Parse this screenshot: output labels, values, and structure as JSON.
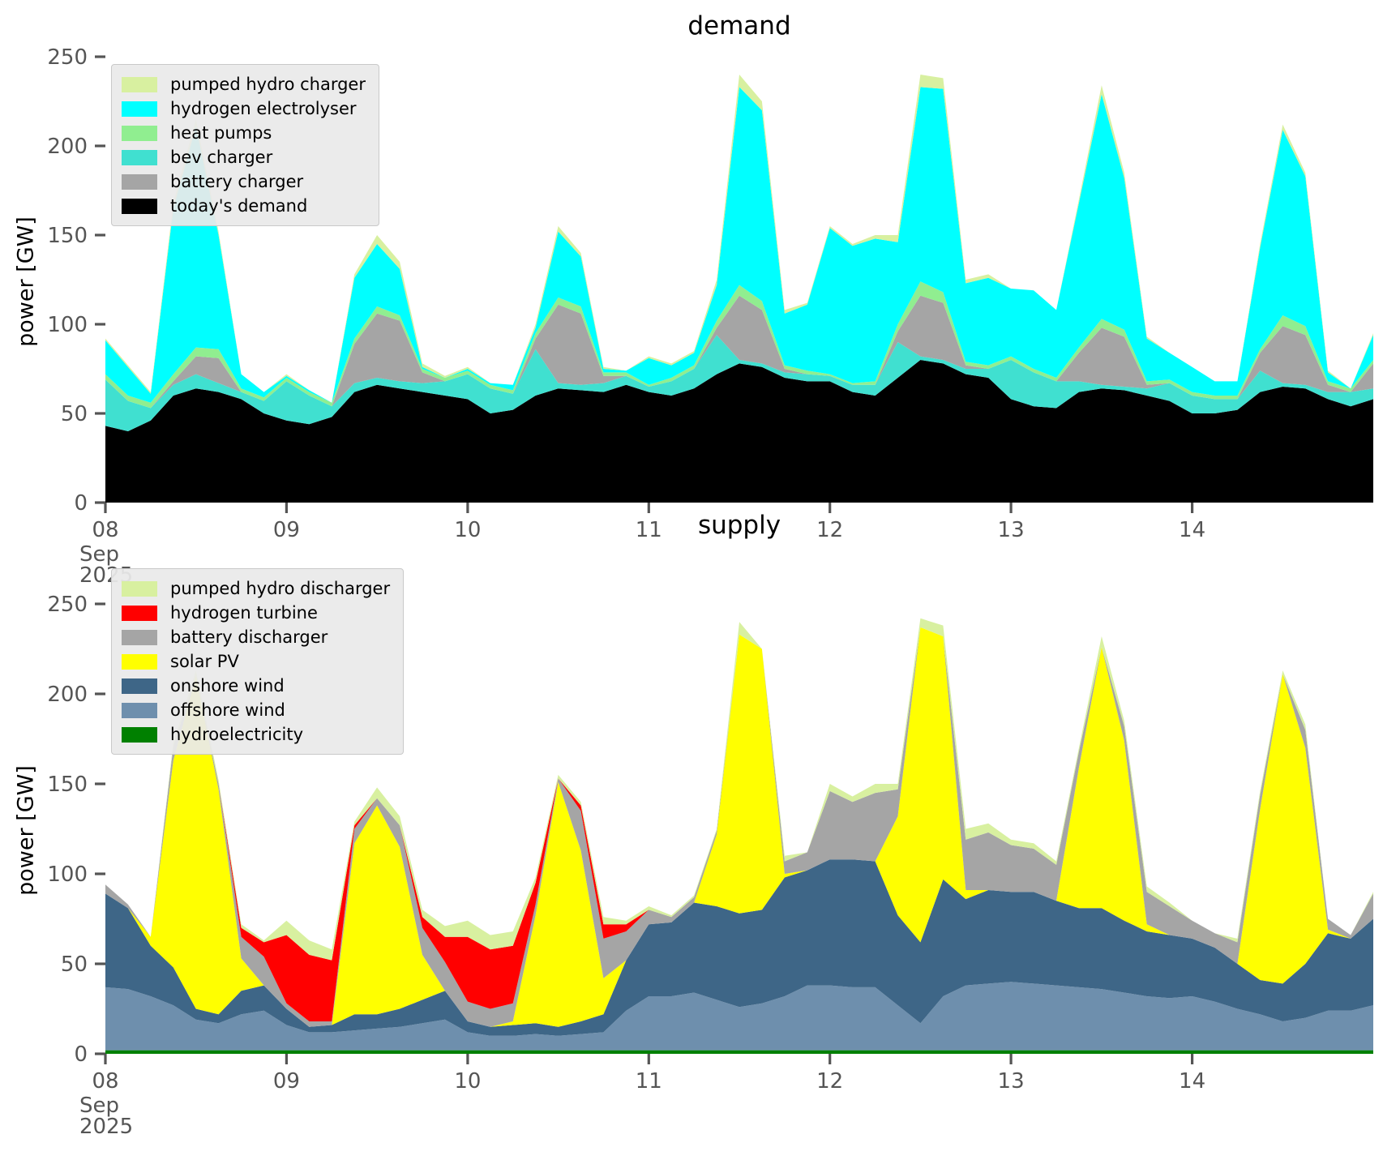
{
  "figure": {
    "background": "#ffffff",
    "tick_color": "#555555",
    "tick_label_color": "#555555",
    "title_color": "#000000"
  },
  "chart_data": [
    {
      "key": "demand",
      "type": "area",
      "title": "demand",
      "ylabel": "power [GW]",
      "ylim": [
        0,
        250
      ],
      "y_ticks": [
        "0",
        "50",
        "100",
        "150",
        "200",
        "250"
      ],
      "x_ticks": [
        {
          "label": "08",
          "sub": [
            "Sep",
            "2025"
          ]
        },
        {
          "label": "09"
        },
        {
          "label": "10"
        },
        {
          "label": "11"
        },
        {
          "label": "12"
        },
        {
          "label": "13"
        },
        {
          "label": "14"
        }
      ],
      "x_start": "2025-09-08 00:00",
      "hours_span": 168,
      "step_hours": 3,
      "grid": false,
      "legend_position": "upper left",
      "legend": [
        {
          "label": "pumped hydro charger",
          "color": "#d8f0a0"
        },
        {
          "label": "hydrogen electrolyser",
          "color": "#00ffff"
        },
        {
          "label": "heat pumps",
          "color": "#90ee90"
        },
        {
          "label": "bev charger",
          "color": "#40e0d0"
        },
        {
          "label": "battery charger",
          "color": "#a5a5a5"
        },
        {
          "label": "today's demand",
          "color": "#000000"
        }
      ],
      "series": [
        {
          "name": "today's demand",
          "color": "#000000",
          "values": [
            43,
            40,
            46,
            60,
            64,
            62,
            58,
            50,
            46,
            44,
            48,
            62,
            66,
            64,
            62,
            60,
            58,
            50,
            52,
            60,
            64,
            63,
            62,
            66,
            62,
            60,
            64,
            72,
            78,
            76,
            70,
            68,
            68,
            62,
            60,
            70,
            80,
            78,
            72,
            70,
            58,
            54,
            53,
            62,
            64,
            63,
            60,
            57,
            50,
            50,
            52,
            62,
            65,
            64,
            58,
            54,
            58
          ]
        },
        {
          "name": "bev charger",
          "color": "#40e0d0",
          "values": [
            26,
            17,
            7,
            6,
            8,
            5,
            4,
            7,
            22,
            16,
            6,
            5,
            4,
            4,
            5,
            8,
            14,
            14,
            9,
            26,
            3,
            3,
            5,
            5,
            3,
            8,
            11,
            22,
            2,
            2,
            3,
            4,
            3,
            4,
            6,
            20,
            2,
            2,
            3,
            5,
            22,
            19,
            15,
            6,
            2,
            2,
            4,
            10,
            10,
            8,
            6,
            12,
            2,
            2,
            4,
            8,
            6
          ]
        },
        {
          "name": "battery charger",
          "color": "#a5a5a5",
          "values": [
            0,
            0,
            0,
            2,
            10,
            14,
            0,
            0,
            0,
            0,
            0,
            22,
            36,
            34,
            6,
            0,
            0,
            0,
            0,
            6,
            44,
            40,
            4,
            0,
            0,
            0,
            0,
            4,
            36,
            30,
            2,
            0,
            0,
            0,
            0,
            6,
            34,
            32,
            2,
            0,
            0,
            0,
            0,
            16,
            32,
            28,
            2,
            0,
            0,
            0,
            0,
            10,
            32,
            28,
            4,
            0,
            14
          ]
        },
        {
          "name": "heat pumps",
          "color": "#90ee90",
          "values": [
            3,
            3,
            3,
            4,
            5,
            5,
            2,
            2,
            2,
            2,
            2,
            3,
            4,
            3,
            2,
            2,
            2,
            2,
            2,
            3,
            4,
            4,
            2,
            2,
            1,
            2,
            2,
            4,
            6,
            5,
            2,
            2,
            1,
            1,
            2,
            4,
            8,
            6,
            2,
            2,
            2,
            2,
            2,
            3,
            5,
            4,
            2,
            2,
            2,
            2,
            2,
            2,
            6,
            5,
            2,
            2,
            2
          ]
        },
        {
          "name": "hydrogen electrolyser",
          "color": "#00ffff",
          "values": [
            19,
            16,
            5,
            93,
            124,
            64,
            8,
            3,
            1,
            1,
            0,
            34,
            35,
            26,
            1,
            0,
            1,
            1,
            3,
            3,
            37,
            28,
            2,
            1,
            15,
            7,
            7,
            20,
            111,
            107,
            29,
            37,
            82,
            77,
            80,
            46,
            109,
            114,
            44,
            49,
            38,
            44,
            38,
            81,
            126,
            85,
            24,
            15,
            14,
            8,
            8,
            57,
            104,
            84,
            5,
            0,
            14
          ]
        },
        {
          "name": "pumped hydro charger",
          "color": "#d8f0a0",
          "values": [
            1,
            1,
            1,
            3,
            4,
            2,
            0,
            0,
            1,
            0,
            0,
            2,
            5,
            4,
            2,
            1,
            1,
            0,
            0,
            2,
            3,
            2,
            1,
            0,
            1,
            1,
            1,
            3,
            7,
            5,
            2,
            1,
            1,
            1,
            2,
            4,
            7,
            6,
            2,
            2,
            0,
            0,
            0,
            2,
            5,
            3,
            1,
            0,
            0,
            0,
            0,
            2,
            3,
            2,
            1,
            0,
            1
          ]
        }
      ]
    },
    {
      "key": "supply",
      "type": "area",
      "title": "supply",
      "ylabel": "power [GW]",
      "ylim": [
        0,
        250
      ],
      "y_ticks": [
        "0",
        "50",
        "100",
        "150",
        "200",
        "250"
      ],
      "x_ticks": [
        {
          "label": "08",
          "sub": [
            "Sep",
            "2025"
          ]
        },
        {
          "label": "09"
        },
        {
          "label": "10"
        },
        {
          "label": "11"
        },
        {
          "label": "12"
        },
        {
          "label": "13"
        },
        {
          "label": "14"
        }
      ],
      "x_start": "2025-09-08 00:00",
      "hours_span": 168,
      "step_hours": 3,
      "grid": false,
      "legend_position": "upper left",
      "legend": [
        {
          "label": "pumped hydro discharger",
          "color": "#d8f0a0"
        },
        {
          "label": "hydrogen turbine",
          "color": "#ff0000"
        },
        {
          "label": "battery discharger",
          "color": "#a5a5a5"
        },
        {
          "label": "solar PV",
          "color": "#ffff00"
        },
        {
          "label": "onshore wind",
          "color": "#3e6687"
        },
        {
          "label": "offshore wind",
          "color": "#6e8fad"
        },
        {
          "label": "hydroelectricity",
          "color": "#008000"
        }
      ],
      "series": [
        {
          "name": "hydroelectricity",
          "color": "#008000",
          "values": [
            2,
            2,
            2,
            2,
            2,
            2,
            2,
            2,
            2,
            2,
            2,
            2,
            2,
            2,
            2,
            2,
            2,
            2,
            2,
            2,
            2,
            2,
            2,
            2,
            2,
            2,
            2,
            2,
            2,
            2,
            2,
            2,
            2,
            2,
            2,
            2,
            2,
            2,
            2,
            2,
            2,
            2,
            2,
            2,
            2,
            2,
            2,
            2,
            2,
            2,
            2,
            2,
            2,
            2,
            2,
            2,
            2
          ]
        },
        {
          "name": "offshore wind",
          "color": "#6e8fad",
          "values": [
            35,
            34,
            30,
            25,
            17,
            15,
            20,
            22,
            14,
            10,
            10,
            11,
            12,
            13,
            15,
            17,
            10,
            8,
            8,
            9,
            8,
            9,
            10,
            22,
            30,
            30,
            32,
            28,
            24,
            26,
            30,
            36,
            36,
            35,
            35,
            25,
            15,
            30,
            36,
            37,
            38,
            37,
            36,
            35,
            34,
            32,
            30,
            29,
            30,
            27,
            23,
            20,
            16,
            18,
            22,
            22,
            25
          ]
        },
        {
          "name": "onshore wind",
          "color": "#3e6687",
          "values": [
            52,
            45,
            28,
            21,
            6,
            5,
            13,
            14,
            9,
            3,
            4,
            9,
            8,
            10,
            13,
            16,
            6,
            5,
            6,
            6,
            5,
            7,
            10,
            28,
            40,
            41,
            50,
            52,
            52,
            52,
            66,
            64,
            70,
            71,
            70,
            50,
            45,
            65,
            48,
            52,
            50,
            51,
            47,
            44,
            45,
            40,
            36,
            35,
            32,
            30,
            25,
            19,
            21,
            30,
            43,
            40,
            48
          ]
        },
        {
          "name": "solar PV",
          "color": "#ffff00",
          "values": [
            0,
            0,
            5,
            115,
            185,
            125,
            18,
            0,
            0,
            0,
            0,
            95,
            116,
            90,
            25,
            0,
            0,
            0,
            2,
            60,
            136,
            95,
            20,
            0,
            0,
            0,
            0,
            40,
            155,
            145,
            2,
            0,
            0,
            0,
            0,
            55,
            175,
            135,
            5,
            0,
            0,
            0,
            0,
            78,
            145,
            100,
            4,
            0,
            0,
            0,
            0,
            95,
            172,
            120,
            2,
            0,
            0
          ]
        },
        {
          "name": "battery discharger",
          "color": "#a5a5a5",
          "values": [
            5,
            2,
            0,
            8,
            0,
            3,
            12,
            16,
            3,
            3,
            2,
            8,
            4,
            12,
            15,
            16,
            11,
            10,
            10,
            6,
            2,
            22,
            22,
            16,
            8,
            3,
            3,
            2,
            0,
            0,
            7,
            10,
            38,
            32,
            38,
            15,
            0,
            0,
            28,
            32,
            26,
            24,
            20,
            9,
            0,
            8,
            18,
            16,
            10,
            8,
            12,
            8,
            0,
            10,
            6,
            2,
            14
          ]
        },
        {
          "name": "hydrogen turbine",
          "color": "#ff0000",
          "values": [
            0,
            0,
            0,
            0,
            0,
            0,
            5,
            8,
            38,
            37,
            34,
            2,
            0,
            0,
            6,
            14,
            36,
            33,
            32,
            12,
            0,
            3,
            8,
            4,
            0,
            0,
            0,
            0,
            0,
            0,
            0,
            0,
            0,
            0,
            0,
            0,
            0,
            0,
            0,
            0,
            0,
            0,
            0,
            0,
            0,
            0,
            0,
            0,
            0,
            0,
            0,
            0,
            0,
            0,
            0,
            0,
            0
          ]
        },
        {
          "name": "pumped hydro discharger",
          "color": "#d8f0a0",
          "values": [
            0,
            0,
            0,
            2,
            3,
            2,
            2,
            1,
            8,
            8,
            6,
            2,
            6,
            5,
            4,
            6,
            9,
            8,
            8,
            3,
            2,
            2,
            4,
            2,
            2,
            1,
            1,
            1,
            7,
            0,
            3,
            0,
            4,
            3,
            5,
            3,
            5,
            6,
            6,
            5,
            3,
            3,
            2,
            2,
            6,
            3,
            3,
            2,
            0,
            0,
            2,
            2,
            2,
            3,
            0,
            0,
            1
          ]
        }
      ]
    }
  ]
}
